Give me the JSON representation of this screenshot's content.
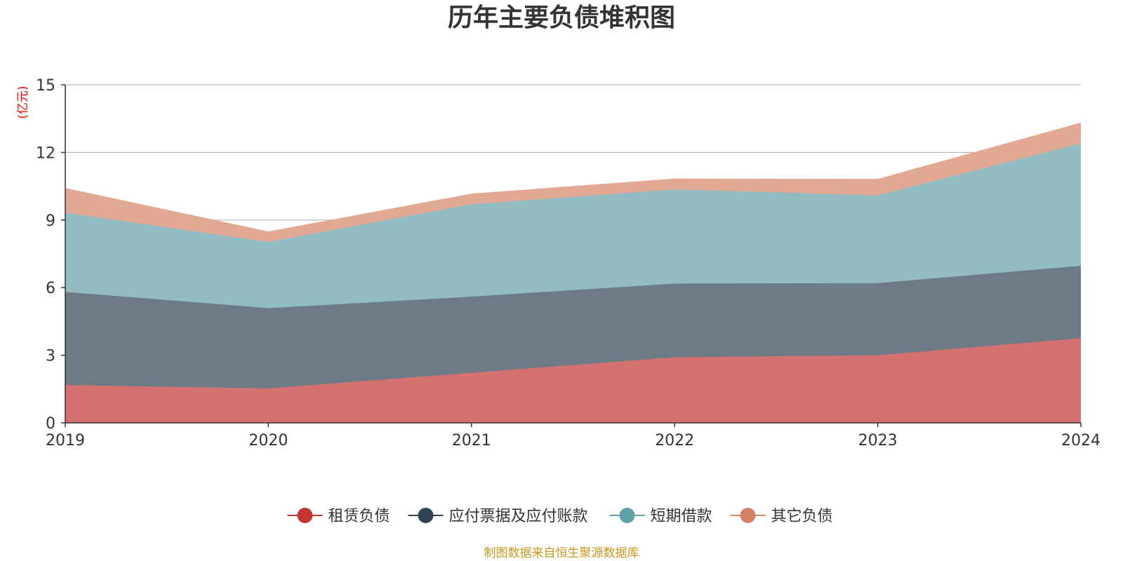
{
  "chart_data": {
    "type": "area",
    "stacked": true,
    "title": "历年主要负债堆积图",
    "unit": "(亿元)",
    "categories": [
      "2019",
      "2020",
      "2021",
      "2022",
      "2023",
      "2024"
    ],
    "ylim": [
      0,
      15
    ],
    "yticks": [
      0,
      3,
      6,
      9,
      12,
      15
    ],
    "grid": true,
    "legend_position": "bottom",
    "series": [
      {
        "name": "租赁负债",
        "values": [
          1.68,
          1.53,
          2.22,
          2.91,
          3.0,
          3.76
        ],
        "color": "#c23531",
        "fill": "#d47270"
      },
      {
        "name": "应付票据及应付账款",
        "values": [
          4.13,
          3.56,
          3.38,
          3.27,
          3.2,
          3.21
        ],
        "color": "#2f4554",
        "fill": "#6d7b86"
      },
      {
        "name": "短期借款",
        "values": [
          3.52,
          2.94,
          4.1,
          4.18,
          3.9,
          5.43
        ],
        "color": "#61a0a8",
        "fill": "#93bcc2"
      },
      {
        "name": "其它负债",
        "values": [
          1.07,
          0.44,
          0.45,
          0.46,
          0.7,
          0.9
        ],
        "color": "#d48265",
        "fill": "#e2a893"
      }
    ],
    "source": "制图数据来自恒生聚源数据库"
  }
}
